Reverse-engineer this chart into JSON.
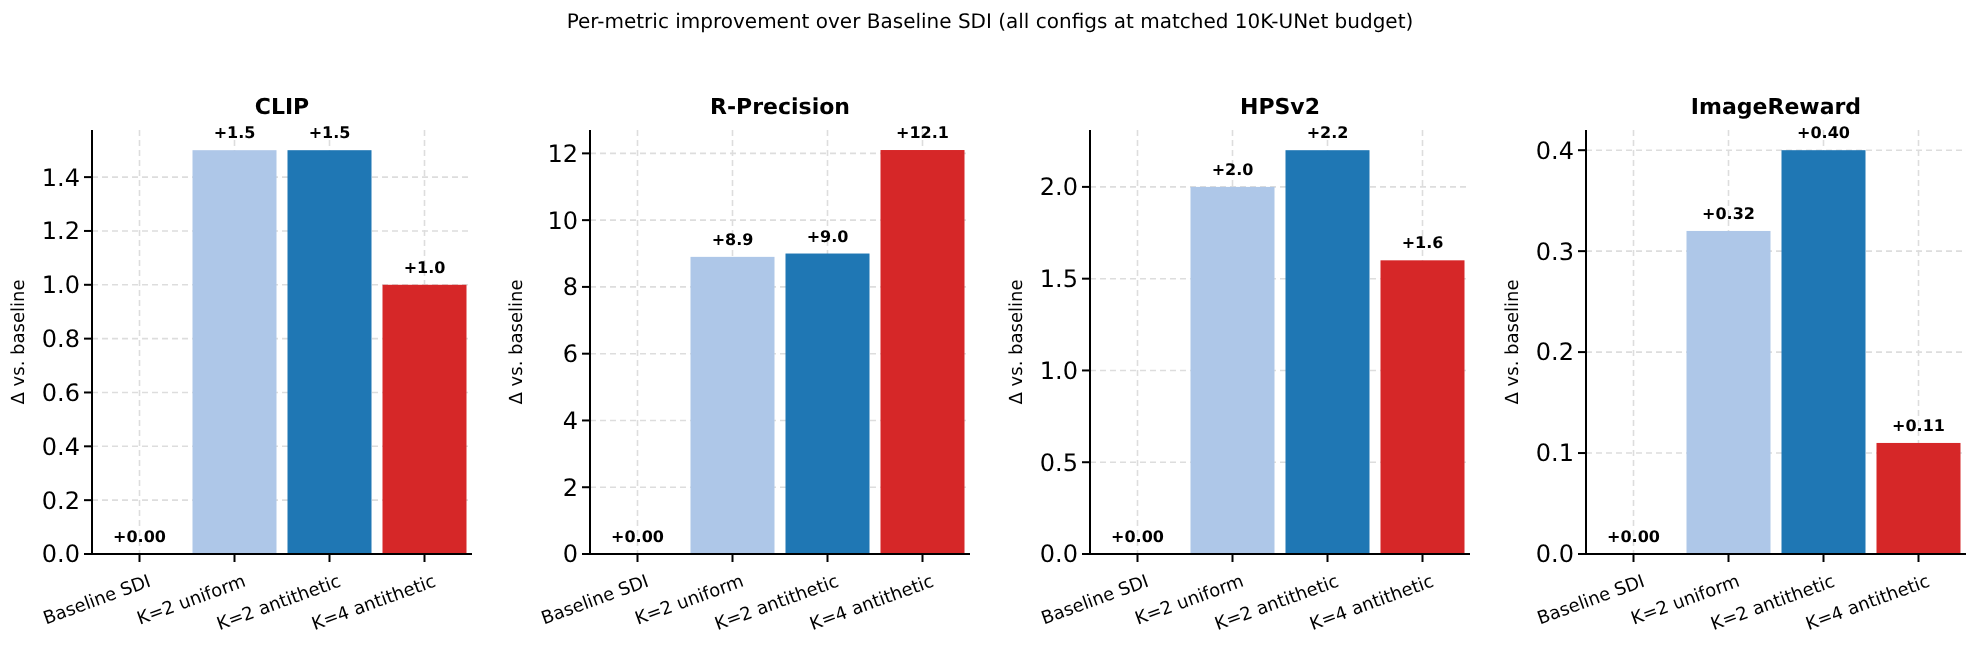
{
  "chart_data": [
    {
      "type": "bar",
      "title": "CLIP",
      "ylabel": "Δ vs. baseline",
      "categories": [
        "Baseline SDI",
        "K=2 uniform",
        "K=2 antithetic",
        "K=4 antithetic"
      ],
      "values": [
        0,
        1.5,
        1.5,
        1.0
      ],
      "value_labels": [
        "+0.00",
        "+1.5",
        "+1.5",
        "+1.0"
      ],
      "colors": [
        "#7f7f7f",
        "#aec7e8",
        "#1f77b4",
        "#d62728"
      ],
      "ylim": [
        0,
        1.575
      ],
      "yticks": [
        {
          "value": 0,
          "label": "0.0"
        },
        {
          "value": 0.2,
          "label": "0.2"
        },
        {
          "value": 0.4,
          "label": "0.4"
        },
        {
          "value": 0.6,
          "label": "0.6"
        },
        {
          "value": 0.8,
          "label": "0.8"
        },
        {
          "value": 1.0,
          "label": "1.0"
        },
        {
          "value": 1.2,
          "label": "1.2"
        },
        {
          "value": 1.4,
          "label": "1.4"
        }
      ],
      "grid": true,
      "annotations": [
        "Per-metric improvement over Baseline SDI (all configs at matched 10K-UNet budget)"
      ]
    },
    {
      "type": "bar",
      "title": "R-Precision",
      "ylabel": "Δ vs. baseline",
      "categories": [
        "Baseline SDI",
        "K=2 uniform",
        "K=2 antithetic",
        "K=4 antithetic"
      ],
      "values": [
        0,
        8.9,
        9.0,
        12.1
      ],
      "value_labels": [
        "+0.00",
        "+8.9",
        "+9.0",
        "+12.1"
      ],
      "colors": [
        "#7f7f7f",
        "#aec7e8",
        "#1f77b4",
        "#d62728"
      ],
      "ylim": [
        0,
        12.7
      ],
      "yticks": [
        0,
        2,
        4,
        6,
        8,
        10,
        12
      ],
      "grid": true
    },
    {
      "type": "bar",
      "title": "HPSv2",
      "ylabel": "Δ vs. baseline",
      "categories": [
        "Baseline SDI",
        "K=2 uniform",
        "K=2 antithetic",
        "K=4 antithetic"
      ],
      "values": [
        0,
        2.0,
        2.2,
        1.6
      ],
      "value_labels": [
        "+0.00",
        "+2.0",
        "+2.2",
        "+1.6"
      ],
      "colors": [
        "#7f7f7f",
        "#aec7e8",
        "#1f77b4",
        "#d62728"
      ],
      "ylim": [
        0,
        2.31
      ],
      "yticks": [
        {
          "value": 0,
          "label": "0.0"
        },
        {
          "value": 0.5,
          "label": "0.5"
        },
        {
          "value": 1.0,
          "label": "1.0"
        },
        {
          "value": 1.5,
          "label": "1.5"
        },
        {
          "value": 2.0,
          "label": "2.0"
        }
      ],
      "grid": true
    },
    {
      "type": "bar",
      "title": "ImageReward",
      "ylabel": "Δ vs. baseline",
      "categories": [
        "Baseline SDI",
        "K=2 uniform",
        "K=2 antithetic",
        "K=4 antithetic"
      ],
      "values": [
        0,
        0.32,
        0.4,
        0.11
      ],
      "value_labels": [
        "+0.00",
        "+0.32",
        "+0.40",
        "+0.11"
      ],
      "colors": [
        "#7f7f7f",
        "#aec7e8",
        "#1f77b4",
        "#d62728"
      ],
      "ylim": [
        0,
        0.42
      ],
      "yticks": [
        {
          "value": 0,
          "label": "0.0"
        },
        {
          "value": 0.1,
          "label": "0.1"
        },
        {
          "value": 0.2,
          "label": "0.2"
        },
        {
          "value": 0.3,
          "label": "0.3"
        },
        {
          "value": 0.4,
          "label": "0.4"
        }
      ],
      "grid": true
    }
  ]
}
